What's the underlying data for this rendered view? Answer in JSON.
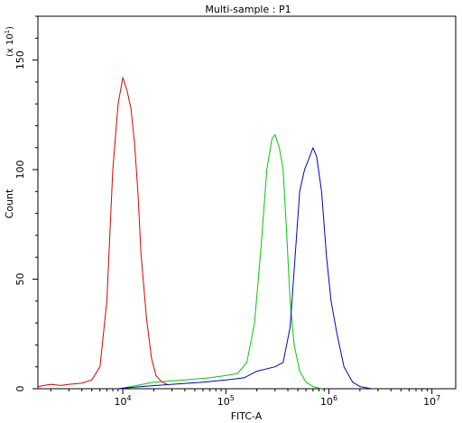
{
  "chart_data": {
    "type": "line",
    "title": "Multi-sample : P1",
    "xlabel": "FITC-A",
    "ylabel": "Count",
    "y_multiplier_label": "(x 10",
    "y_multiplier_exp": "1",
    "x_scale": "log",
    "xlim": [
      1500,
      17000000
    ],
    "ylim": [
      0,
      170
    ],
    "x_ticks": [
      {
        "value": 10000,
        "base": "10",
        "exp": "4"
      },
      {
        "value": 100000,
        "base": "10",
        "exp": "5"
      },
      {
        "value": 1000000,
        "base": "10",
        "exp": "6"
      },
      {
        "value": 10000000,
        "base": "10",
        "exp": "7"
      }
    ],
    "y_ticks": [
      0,
      50,
      100,
      150
    ],
    "grid": false,
    "series": [
      {
        "color": "#dd0000",
        "points": [
          [
            1500,
            1
          ],
          [
            2000,
            2
          ],
          [
            2500,
            1.5
          ],
          [
            3000,
            2
          ],
          [
            4000,
            2.5
          ],
          [
            5000,
            4
          ],
          [
            6000,
            10
          ],
          [
            7000,
            40
          ],
          [
            8000,
            100
          ],
          [
            9000,
            130
          ],
          [
            10000,
            142
          ],
          [
            11000,
            136
          ],
          [
            12000,
            128
          ],
          [
            13000,
            112
          ],
          [
            14000,
            90
          ],
          [
            15000,
            62
          ],
          [
            17000,
            32
          ],
          [
            19000,
            14
          ],
          [
            21000,
            6
          ],
          [
            24000,
            3
          ],
          [
            27000,
            2
          ]
        ]
      },
      {
        "color": "#00cc00",
        "points": [
          [
            9000,
            0
          ],
          [
            12000,
            1
          ],
          [
            20000,
            3
          ],
          [
            40000,
            4
          ],
          [
            70000,
            5
          ],
          [
            100000,
            6
          ],
          [
            130000,
            7
          ],
          [
            160000,
            12
          ],
          [
            190000,
            30
          ],
          [
            220000,
            65
          ],
          [
            250000,
            100
          ],
          [
            280000,
            114
          ],
          [
            300000,
            116
          ],
          [
            330000,
            110
          ],
          [
            360000,
            100
          ],
          [
            390000,
            70
          ],
          [
            420000,
            40
          ],
          [
            460000,
            20
          ],
          [
            520000,
            8
          ],
          [
            600000,
            3
          ],
          [
            700000,
            1
          ],
          [
            850000,
            0
          ]
        ]
      },
      {
        "color": "#0000cc",
        "points": [
          [
            9000,
            0
          ],
          [
            15000,
            1
          ],
          [
            30000,
            2
          ],
          [
            60000,
            3
          ],
          [
            100000,
            4
          ],
          [
            150000,
            5
          ],
          [
            200000,
            8
          ],
          [
            300000,
            10
          ],
          [
            360000,
            12
          ],
          [
            420000,
            28
          ],
          [
            470000,
            60
          ],
          [
            520000,
            90
          ],
          [
            580000,
            100
          ],
          [
            640000,
            105
          ],
          [
            700000,
            110
          ],
          [
            760000,
            106
          ],
          [
            850000,
            90
          ],
          [
            950000,
            60
          ],
          [
            1050000,
            40
          ],
          [
            1200000,
            25
          ],
          [
            1400000,
            10
          ],
          [
            1700000,
            3
          ],
          [
            2000000,
            1
          ],
          [
            2600000,
            0
          ]
        ]
      }
    ]
  }
}
